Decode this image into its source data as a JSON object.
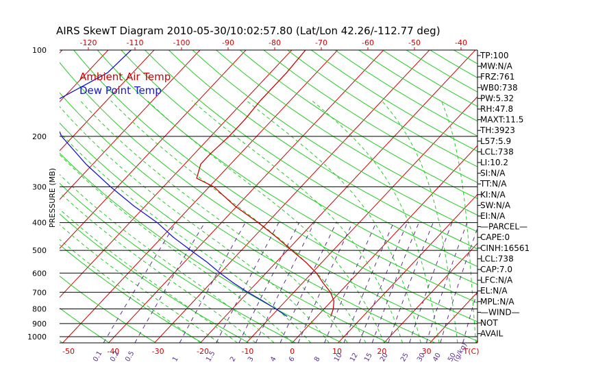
{
  "chart_data": {
    "type": "line",
    "title": "AIRS SkewT Diagram 2010-05-30/10:02:57.80 (Lat/Lon 42.26/-112.77 deg)",
    "ylabel": "PRESSURE (MB)",
    "pressure_ticks": [
      "100",
      "200",
      "300",
      "400",
      "500",
      "600",
      "700",
      "800",
      "900",
      "1000"
    ],
    "pressure_levels": [
      100,
      200,
      300,
      400,
      500,
      600,
      700,
      800,
      900,
      1000
    ],
    "top_temp_ticks": [
      "-120",
      "-110",
      "-100",
      "-90",
      "-80",
      "-70",
      "-60",
      "-50",
      "-40"
    ],
    "bottom_temp_ticks": [
      "-50",
      "-40",
      "-30",
      "-20",
      "-10",
      "0",
      "10",
      "20",
      "30",
      "T(C)"
    ],
    "mixing_ratio_ticks": [
      "0.1",
      "0.2",
      "0.5",
      "1",
      "1.5",
      "2",
      "3",
      "4",
      "6",
      "8",
      "10",
      "12",
      "15",
      "20",
      "25",
      "30",
      "40",
      "50",
      "(g/kg)"
    ],
    "legend": [
      {
        "label": "Ambient Air Temp",
        "color": "#cc0000"
      },
      {
        "label": "Dew Point Temp",
        "color": "#1515cc"
      }
    ],
    "series": [
      {
        "name": "Ambient Air Temp",
        "color": "#cc0000",
        "points": [
          {
            "p": 100,
            "t": -57.0
          },
          {
            "p": 120,
            "t": -56.5
          },
          {
            "p": 150,
            "t": -56.5
          },
          {
            "p": 175,
            "t": -56.0
          },
          {
            "p": 200,
            "t": -56.0
          },
          {
            "p": 230,
            "t": -56.5
          },
          {
            "p": 250,
            "t": -56.5
          },
          {
            "p": 280,
            "t": -54.5
          },
          {
            "p": 300,
            "t": -49.0
          },
          {
            "p": 350,
            "t": -40.5
          },
          {
            "p": 400,
            "t": -32.0
          },
          {
            "p": 450,
            "t": -25.0
          },
          {
            "p": 500,
            "t": -19.0
          },
          {
            "p": 550,
            "t": -13.5
          },
          {
            "p": 600,
            "t": -9.0
          },
          {
            "p": 650,
            "t": -5.5
          },
          {
            "p": 700,
            "t": -2.0
          },
          {
            "p": 750,
            "t": 0.5
          },
          {
            "p": 800,
            "t": 2.0
          },
          {
            "p": 850,
            "t": 3.0
          }
        ]
      },
      {
        "name": "Dew Point Temp",
        "color": "#1515cc",
        "points": [
          {
            "p": 100,
            "t": -95.0
          },
          {
            "p": 120,
            "t": -95.5
          },
          {
            "p": 150,
            "t": -101.0
          },
          {
            "p": 175,
            "t": -97.5
          },
          {
            "p": 200,
            "t": -92.5
          },
          {
            "p": 250,
            "t": -81.5
          },
          {
            "p": 300,
            "t": -71.5
          },
          {
            "p": 350,
            "t": -62.5
          },
          {
            "p": 400,
            "t": -54.0
          },
          {
            "p": 450,
            "t": -47.5
          },
          {
            "p": 500,
            "t": -41.0
          },
          {
            "p": 550,
            "t": -35.0
          },
          {
            "p": 600,
            "t": -30.0
          },
          {
            "p": 650,
            "t": -25.0
          },
          {
            "p": 700,
            "t": -20.0
          },
          {
            "p": 750,
            "t": -15.0
          },
          {
            "p": 800,
            "t": -10.5
          },
          {
            "p": 850,
            "t": -6.5
          }
        ]
      }
    ],
    "background_lines": {
      "isotherm_color": "#cc0000",
      "dry_adiabat_color": "#22cc22",
      "moist_adiabat_color": "#22cc22",
      "mixing_ratio_color": "#5a2d91",
      "isobar_color": "#000000"
    },
    "grid": true,
    "legend_position": "top-left"
  },
  "side_panel": [
    "TP:100",
    "MW:N/A",
    "FRZ:761",
    "WB0:738",
    "PW:5.32",
    "RH:47.8",
    "MAXT:11.5",
    "TH:3923",
    "L57:5.9",
    "LCL:738",
    "LI:10.2",
    "SI:N/A",
    "TT:N/A",
    "KI:N/A",
    "SW:N/A",
    "EI:N/A",
    "—PARCEL—",
    "CAPE:0",
    "CINH:16561",
    "LCL:738",
    "CAP:7.0",
    "LFC:N/A",
    "EL:N/A",
    "MPL:N/A",
    "—WIND—",
    "NOT",
    "AVAIL"
  ]
}
